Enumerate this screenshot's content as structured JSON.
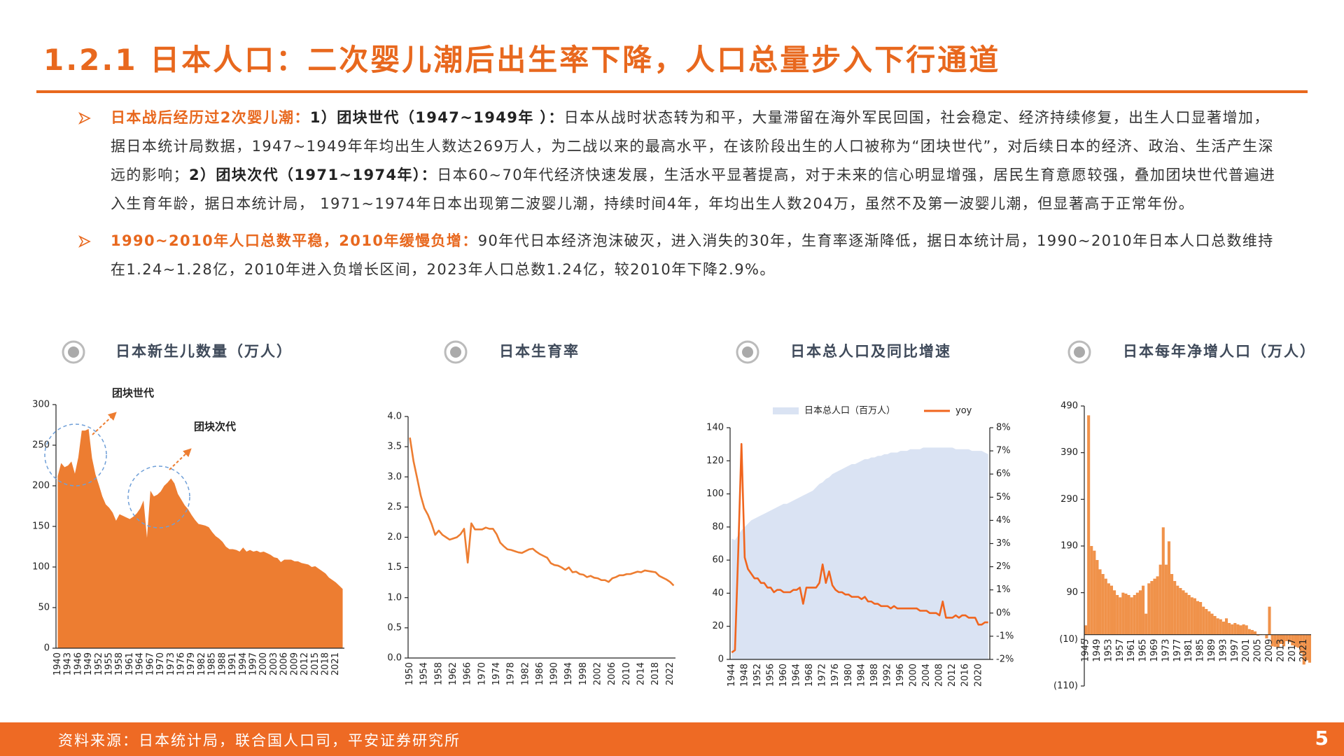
{
  "header": {
    "title": "1.2.1 日本人口：二次婴儿潮后出生率下降，人口总量步入下行通道"
  },
  "bullets": [
    {
      "parts": [
        "日本战后经历过2次婴儿潮：",
        "1）团块世代（1947~1949年 ）：",
        "日本从战时状态转为和平，大量滞留在海外军民回国，社会稳定、经济持续修复，出生人口显著增加，据日本统计局数据，1947~1949年年均出生人数达269万人，为二战以来的最高水平，在该阶段出生的人口被称为“团块世代”，对后续日本的经济、政治、生活产生深远的影响；",
        "2）团块次代（1971~1974年）：",
        "日本60~70年代经济快速发展，生活水平显著提高，对于未来的信心明显增强，居民生育意愿较强，叠加团块世代普遍进入生育年龄，据日本统计局， 1971~1974年日本出现第二波婴儿潮，持续时间4年，年均出生人数204万，虽然不及第一波婴儿潮，但显著高于正常年份。"
      ]
    },
    {
      "parts": [
        "1990~2010年人口总数平稳，2010年缓慢负增：",
        "90年代日本经济泡沫破灭，进入消失的30年，生育率逐渐降低，据日本统计局，1990~2010年日本人口总数维持在1.24~1.28亿，2010年进入负增长区间，2023年人口总数1.24亿，较2010年下降2.9%。"
      ]
    }
  ],
  "chart_data": [
    {
      "type": "area",
      "title": "日本新生儿数量（万人）",
      "color": "#ed7d31",
      "annotations": [
        "团块世代",
        "团块次代"
      ],
      "categories": [
        "1940",
        null,
        null,
        "1943",
        null,
        null,
        "1946",
        null,
        null,
        "1949",
        null,
        null,
        "1952",
        null,
        null,
        "1955",
        null,
        null,
        "1958",
        null,
        null,
        "1961",
        null,
        null,
        "1964",
        null,
        null,
        "1967",
        null,
        null,
        "1970",
        null,
        null,
        "1973",
        null,
        null,
        "1976",
        null,
        null,
        "1979",
        null,
        null,
        "1982",
        null,
        null,
        "1985",
        null,
        null,
        "1988",
        null,
        null,
        "1991",
        null,
        null,
        "1994",
        null,
        null,
        "1997",
        null,
        null,
        "2000",
        null,
        null,
        "2003",
        null,
        null,
        "2006",
        null,
        null,
        "2009",
        null,
        null,
        "2012",
        null,
        null,
        "2015",
        null,
        null,
        "2018",
        null,
        null,
        "2021",
        null,
        null
      ],
      "values": [
        212,
        228,
        223,
        225,
        230,
        215,
        235,
        268,
        268,
        270,
        234,
        214,
        201,
        187,
        177,
        173,
        167,
        157,
        165,
        163,
        161,
        159,
        162,
        166,
        172,
        182,
        136,
        194,
        187,
        189,
        193,
        200,
        204,
        209,
        203,
        190,
        183,
        176,
        171,
        164,
        158,
        153,
        152,
        151,
        149,
        143,
        138,
        135,
        131,
        125,
        122,
        122,
        121,
        119,
        124,
        119,
        121,
        119,
        120,
        118,
        119,
        117,
        115,
        112,
        111,
        106,
        109,
        109,
        109,
        107,
        107,
        105,
        104,
        103,
        100,
        101,
        98,
        95,
        92,
        87,
        84,
        81,
        77,
        73
      ],
      "ylim": [
        0,
        300
      ],
      "yticks": [
        0,
        50,
        100,
        150,
        200,
        250,
        300
      ]
    },
    {
      "type": "line",
      "title": "日本生育率",
      "color": "#ed7d31",
      "categories": [
        "1950",
        null,
        null,
        null,
        "1954",
        null,
        null,
        null,
        "1958",
        null,
        null,
        null,
        "1962",
        null,
        null,
        null,
        "1966",
        null,
        null,
        null,
        "1970",
        null,
        null,
        null,
        "1974",
        null,
        null,
        null,
        "1978",
        null,
        null,
        null,
        "1982",
        null,
        null,
        null,
        "1986",
        null,
        null,
        null,
        "1990",
        null,
        null,
        null,
        "1994",
        null,
        null,
        null,
        "1998",
        null,
        null,
        null,
        "2002",
        null,
        null,
        null,
        "2006",
        null,
        null,
        null,
        "2010",
        null,
        null,
        null,
        "2014",
        null,
        null,
        null,
        "2018",
        null,
        null,
        null,
        "2022",
        null
      ],
      "values": [
        3.65,
        3.26,
        2.98,
        2.69,
        2.48,
        2.37,
        2.22,
        2.04,
        2.11,
        2.04,
        2.0,
        1.96,
        1.98,
        2.0,
        2.05,
        2.14,
        1.58,
        2.23,
        2.13,
        2.13,
        2.13,
        2.16,
        2.14,
        2.14,
        2.05,
        1.91,
        1.85,
        1.8,
        1.79,
        1.77,
        1.75,
        1.74,
        1.77,
        1.8,
        1.81,
        1.76,
        1.72,
        1.69,
        1.66,
        1.57,
        1.54,
        1.53,
        1.5,
        1.46,
        1.5,
        1.42,
        1.43,
        1.39,
        1.38,
        1.34,
        1.36,
        1.33,
        1.32,
        1.29,
        1.29,
        1.26,
        1.32,
        1.34,
        1.37,
        1.37,
        1.39,
        1.39,
        1.41,
        1.43,
        1.42,
        1.45,
        1.44,
        1.43,
        1.42,
        1.36,
        1.33,
        1.3,
        1.26,
        1.2
      ],
      "ylim": [
        0,
        4
      ],
      "yticks": [
        {
          "value": 0,
          "label": "0.0"
        },
        0.5,
        {
          "value": 1,
          "label": "1.0"
        },
        1.5,
        {
          "value": 2,
          "label": "2.0"
        },
        2.5,
        {
          "value": 3,
          "label": "3.0"
        },
        3.5,
        {
          "value": 4,
          "label": "4.0"
        }
      ]
    },
    {
      "type": "combo",
      "title": "日本总人口及同比增速",
      "legend": "top",
      "categories": [
        "1944",
        null,
        null,
        null,
        "1948",
        null,
        null,
        null,
        "1952",
        null,
        null,
        null,
        "1956",
        null,
        null,
        null,
        "1960",
        null,
        null,
        null,
        "1964",
        null,
        null,
        null,
        "1968",
        null,
        null,
        null,
        "1972",
        null,
        null,
        null,
        "1976",
        null,
        null,
        null,
        "1980",
        null,
        null,
        null,
        "1984",
        null,
        null,
        null,
        "1988",
        null,
        null,
        null,
        "1992",
        null,
        null,
        null,
        "1996",
        null,
        null,
        null,
        "2000",
        null,
        null,
        null,
        "2004",
        null,
        null,
        null,
        "2008",
        null,
        null,
        null,
        "2012",
        null,
        null,
        null,
        "2016",
        null,
        null,
        null,
        "2020",
        null,
        null,
        null
      ],
      "series": [
        {
          "name": "日本总人口（百万人）",
          "type": "area",
          "color": "#dae3f3",
          "values": [
            73,
            72,
            75,
            78,
            80,
            82,
            84,
            85,
            86,
            87,
            88,
            89,
            90,
            91,
            92,
            93,
            94,
            94,
            95,
            96,
            97,
            98,
            99,
            100,
            101,
            102,
            104,
            106,
            107,
            109,
            110,
            112,
            113,
            114,
            115,
            116,
            117,
            118,
            118,
            119,
            120,
            121,
            121,
            122,
            122,
            123,
            123,
            124,
            124,
            125,
            125,
            125,
            126,
            126,
            126,
            127,
            127,
            127,
            127,
            128,
            128,
            128,
            128,
            128,
            128,
            128,
            128,
            128,
            128,
            127,
            127,
            127,
            127,
            127,
            126,
            126,
            126,
            126,
            125,
            124
          ]
        },
        {
          "name": "yoy",
          "type": "line",
          "color": "#f0651e",
          "axis": "y2",
          "values": [
            -1.7,
            -1.6,
            2.6,
            7.3,
            2.4,
            1.9,
            1.7,
            1.5,
            1.5,
            1.3,
            1.3,
            1.1,
            1.1,
            0.9,
            1.0,
            1.0,
            0.9,
            0.9,
            0.9,
            1.0,
            1.0,
            1.1,
            0.4,
            1.1,
            1.1,
            1.1,
            1.1,
            1.3,
            2.1,
            1.3,
            1.8,
            1.2,
            1.0,
            0.9,
            0.9,
            0.8,
            0.8,
            0.7,
            0.7,
            0.7,
            0.6,
            0.7,
            0.5,
            0.5,
            0.4,
            0.4,
            0.3,
            0.3,
            0.3,
            0.2,
            0.3,
            0.2,
            0.2,
            0.2,
            0.2,
            0.2,
            0.2,
            0.2,
            0.1,
            0.1,
            0.1,
            0.0,
            0.0,
            0.0,
            -0.1,
            0.5,
            -0.2,
            -0.2,
            -0.2,
            -0.1,
            -0.2,
            -0.1,
            -0.1,
            -0.2,
            -0.2,
            -0.2,
            -0.5,
            -0.5,
            -0.4,
            -0.4
          ]
        }
      ],
      "ylim": [
        0,
        140
      ],
      "yticks": [
        0,
        20,
        40,
        60,
        80,
        100,
        120,
        140
      ],
      "y2lim": [
        -2,
        8
      ],
      "y2ticks": [
        {
          "value": -2,
          "label": "-2%"
        },
        {
          "value": -1,
          "label": "-1%"
        },
        {
          "value": 0,
          "label": "0%"
        },
        {
          "value": 1,
          "label": "1%"
        },
        {
          "value": 2,
          "label": "2%"
        },
        {
          "value": 3,
          "label": "3%"
        },
        {
          "value": 4,
          "label": "4%"
        },
        {
          "value": 5,
          "label": "5%"
        },
        {
          "value": 6,
          "label": "6%"
        },
        {
          "value": 7,
          "label": "7%"
        },
        {
          "value": 8,
          "label": "8%"
        }
      ]
    },
    {
      "type": "bar",
      "title": "日本每年净增人口（万人）",
      "color": "#f0924a",
      "categories": [
        "1945",
        null,
        null,
        null,
        "1949",
        null,
        null,
        null,
        "1953",
        null,
        null,
        null,
        "1957",
        null,
        null,
        null,
        "1961",
        null,
        null,
        null,
        "1965",
        null,
        null,
        null,
        "1969",
        null,
        null,
        null,
        "1973",
        null,
        null,
        null,
        "1977",
        null,
        null,
        null,
        "1981",
        null,
        null,
        null,
        "1985",
        null,
        null,
        null,
        "1989",
        null,
        null,
        null,
        "1993",
        null,
        null,
        null,
        "1997",
        null,
        null,
        null,
        "2001",
        null,
        null,
        null,
        "2005",
        null,
        null,
        null,
        "2009",
        null,
        null,
        null,
        "2013",
        null,
        null,
        null,
        "2017",
        null,
        null,
        null,
        "2021",
        null,
        null
      ],
      "values": [
        20,
        470,
        190,
        180,
        160,
        140,
        130,
        120,
        110,
        105,
        95,
        85,
        80,
        90,
        88,
        85,
        80,
        85,
        90,
        95,
        105,
        45,
        110,
        115,
        120,
        125,
        150,
        230,
        150,
        200,
        130,
        115,
        105,
        100,
        95,
        90,
        85,
        80,
        78,
        72,
        70,
        60,
        55,
        50,
        45,
        40,
        35,
        33,
        28,
        35,
        25,
        22,
        25,
        22,
        20,
        22,
        20,
        12,
        10,
        7,
        -2,
        1,
        0,
        -8,
        60,
        -25,
        -26,
        -28,
        -20,
        -25,
        -14,
        -16,
        -23,
        -26,
        -28,
        -40,
        -64,
        -55,
        -60
      ],
      "ylim": [
        -110,
        490
      ],
      "yticks": [
        490,
        390,
        290,
        190,
        90,
        {
          "value": -10,
          "label": "(10)"
        },
        {
          "value": -110,
          "label": "(110)"
        }
      ]
    }
  ],
  "footer": {
    "source": "资料来源：日本统计局，联合国人口司，平安证券研究所",
    "page": "5"
  }
}
